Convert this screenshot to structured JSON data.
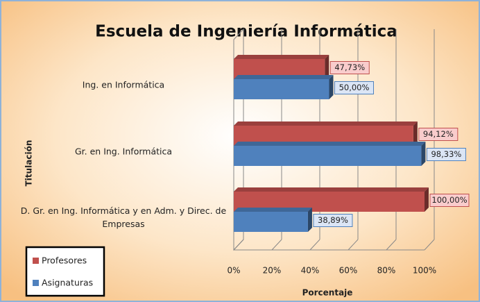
{
  "chart_data": {
    "type": "bar",
    "orientation": "horizontal",
    "title": "Escuela de Ingeniería Informática",
    "ylabel": "Titulación",
    "xlabel": "Porcentaje",
    "categories": [
      "Ing. en Informática",
      "Gr. en Ing. Informática",
      "D. Gr. en Ing. Informática y en Adm. y Direc. de Empresas"
    ],
    "series": [
      {
        "name": "Profesores",
        "color": "#c0504d",
        "values": [
          47.73,
          94.12,
          100
        ],
        "value_labels": [
          "47,73%",
          "94,12%",
          "100,00%"
        ]
      },
      {
        "name": "Asignaturas",
        "color": "#4f81bd",
        "values": [
          50,
          98.33,
          38.89
        ],
        "value_labels": [
          "50,00%",
          "98,33%",
          "38,89%"
        ]
      }
    ],
    "xlim": [
      0,
      100
    ],
    "xticks": [
      {
        "value": 0,
        "label": "0%"
      },
      {
        "value": 20,
        "label": "20%"
      },
      {
        "value": 40,
        "label": "40%"
      },
      {
        "value": 60,
        "label": "60%"
      },
      {
        "value": 80,
        "label": "80%"
      },
      {
        "value": 100,
        "label": "100%"
      }
    ],
    "grid": true,
    "legend": "lower left"
  }
}
